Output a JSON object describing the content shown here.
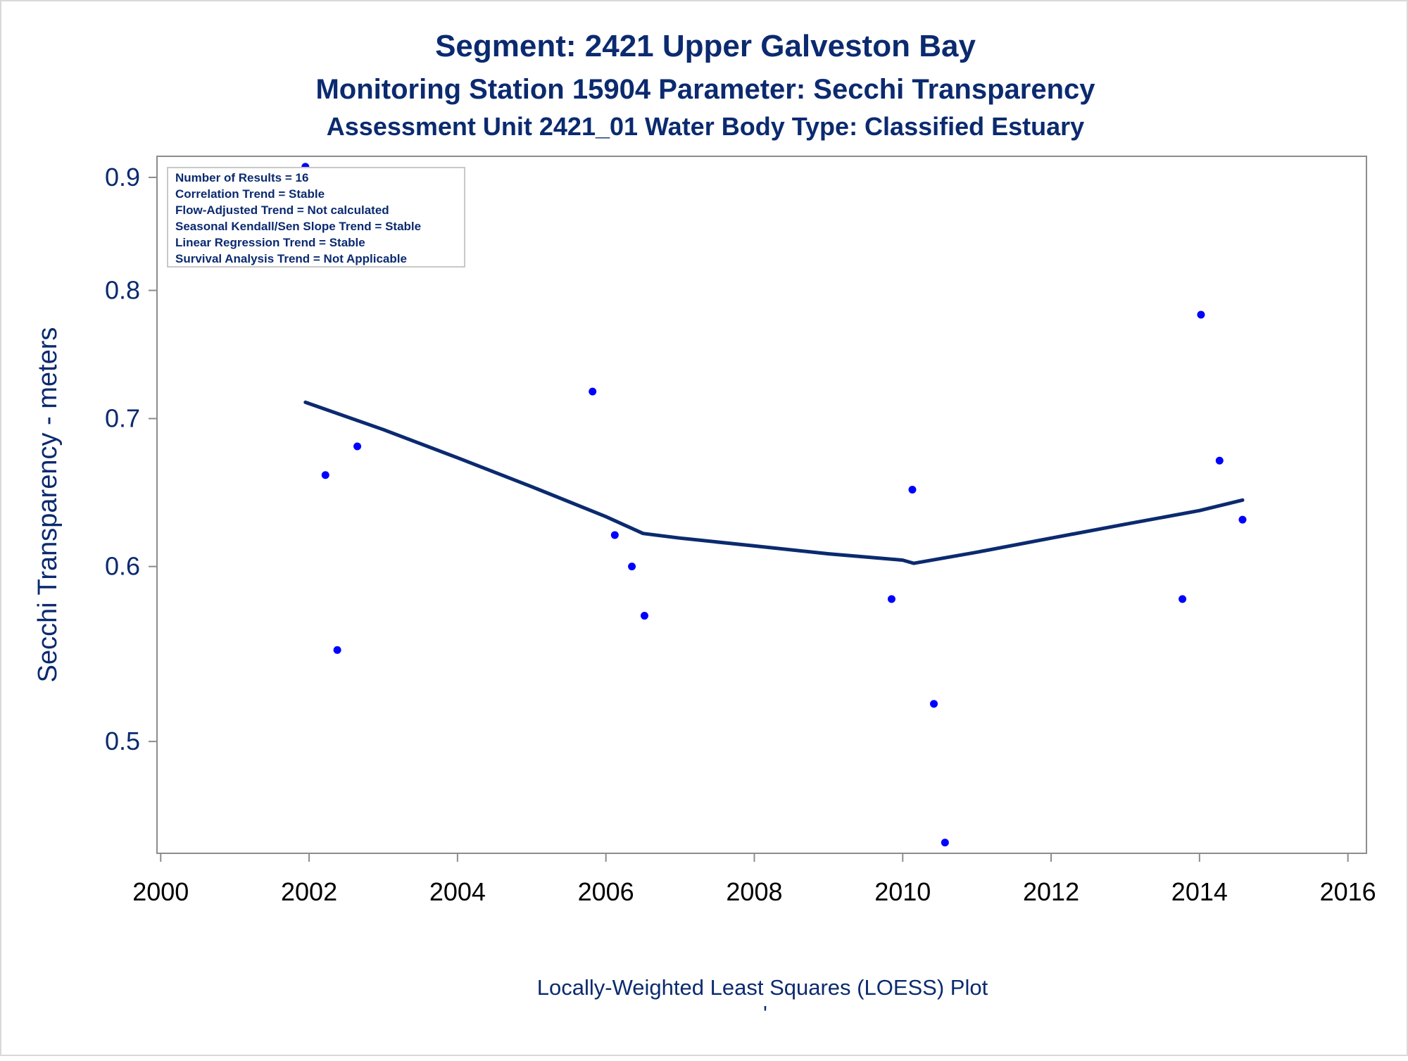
{
  "titles": {
    "line1": "Segment: 2421  Upper Galveston Bay",
    "line2": "Monitoring Station 15904 Parameter: Secchi Transparency",
    "line3": "Assessment Unit 2421_01   Water Body Type: Classified Estuary"
  },
  "footnote": "Locally-Weighted Least Squares (LOESS) Plot",
  "footnote_mark": "'",
  "inset": {
    "lines": [
      "Number of Results = 16",
      "Correlation Trend = Stable",
      "Flow-Adjusted Trend = Not calculated",
      "Seasonal Kendall/Sen Slope Trend = Stable",
      "Linear Regression Trend = Stable",
      "Survival Analysis Trend = Not Applicable"
    ]
  },
  "colors": {
    "text": "#0b2a6f",
    "points": "#0000ff",
    "loess_line": "#0b2a6f",
    "axis": "#8c8c8c"
  },
  "chart_data": {
    "type": "scatter",
    "title": "Segment: 2421  Upper Galveston Bay",
    "xlabel": "",
    "ylabel": "Secchi Transparency - meters",
    "y_scale": "log",
    "xlim": [
      1999.95,
      2016.25
    ],
    "ylim": [
      0.445,
      0.92
    ],
    "x_ticks": [
      2000,
      2002,
      2004,
      2006,
      2008,
      2010,
      2012,
      2014,
      2016
    ],
    "y_ticks": [
      0.5,
      0.6,
      0.7,
      0.8,
      0.9
    ],
    "grid": false,
    "series": [
      {
        "type": "scatter",
        "points": [
          {
            "x": 2001.95,
            "y": 0.91
          },
          {
            "x": 2002.22,
            "y": 0.66
          },
          {
            "x": 2002.38,
            "y": 0.55
          },
          {
            "x": 2002.65,
            "y": 0.68
          },
          {
            "x": 2005.82,
            "y": 0.72
          },
          {
            "x": 2006.12,
            "y": 0.62
          },
          {
            "x": 2006.35,
            "y": 0.6
          },
          {
            "x": 2006.52,
            "y": 0.57
          },
          {
            "x": 2009.85,
            "y": 0.58
          },
          {
            "x": 2010.13,
            "y": 0.65
          },
          {
            "x": 2010.42,
            "y": 0.52
          },
          {
            "x": 2010.57,
            "y": 0.45
          },
          {
            "x": 2013.77,
            "y": 0.58
          },
          {
            "x": 2014.02,
            "y": 0.78
          },
          {
            "x": 2014.27,
            "y": 0.67
          },
          {
            "x": 2014.58,
            "y": 0.63
          }
        ]
      },
      {
        "type": "line",
        "points": [
          {
            "x": 2001.95,
            "y": 0.712
          },
          {
            "x": 2003.0,
            "y": 0.692
          },
          {
            "x": 2004.0,
            "y": 0.672
          },
          {
            "x": 2005.0,
            "y": 0.652
          },
          {
            "x": 2006.0,
            "y": 0.632
          },
          {
            "x": 2006.5,
            "y": 0.621
          },
          {
            "x": 2007.0,
            "y": 0.618
          },
          {
            "x": 2008.0,
            "y": 0.613
          },
          {
            "x": 2009.0,
            "y": 0.608
          },
          {
            "x": 2010.0,
            "y": 0.604
          },
          {
            "x": 2010.15,
            "y": 0.602
          },
          {
            "x": 2011.0,
            "y": 0.609
          },
          {
            "x": 2012.0,
            "y": 0.618
          },
          {
            "x": 2013.0,
            "y": 0.627
          },
          {
            "x": 2014.0,
            "y": 0.636
          },
          {
            "x": 2014.58,
            "y": 0.643
          }
        ]
      }
    ]
  }
}
